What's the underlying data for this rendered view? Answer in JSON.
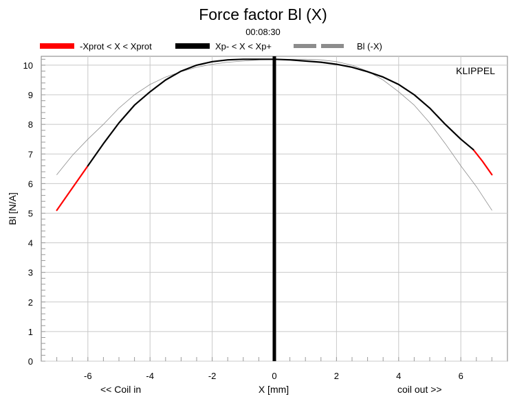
{
  "chart_data": {
    "type": "line",
    "title": "Force factor Bl (X)",
    "subtitle": "00:08:30",
    "xlabel": "X [mm]",
    "ylabel": "Bl [N/A]",
    "xlim": [
      -7.5,
      7.5
    ],
    "ylim": [
      0,
      10.3
    ],
    "x_ticks": [
      -6,
      -4,
      -2,
      0,
      2,
      4,
      6
    ],
    "y_ticks": [
      0,
      1,
      2,
      3,
      4,
      5,
      6,
      7,
      8,
      9,
      10
    ],
    "x_left_label": "<< Coil in",
    "x_right_label": "coil out >>",
    "annotation": "KLIPPEL",
    "grid": true,
    "legend_position": "top",
    "zero_marker_x": 0,
    "series": [
      {
        "name": "-Xprot < X < Xprot",
        "color": "#ff0000",
        "x": [
          -7.0,
          -6.6,
          -6.2,
          -6.0
        ],
        "y": [
          5.1,
          5.7,
          6.3,
          6.6
        ]
      },
      {
        "name": "Xp- < X < Xp+",
        "color": "#000000",
        "x": [
          -6.0,
          -5.5,
          -5.0,
          -4.5,
          -4.0,
          -3.5,
          -3.0,
          -2.5,
          -2.0,
          -1.5,
          -1.0,
          -0.5,
          0.0,
          0.5,
          1.0,
          1.5,
          2.0,
          2.5,
          3.0,
          3.5,
          4.0,
          4.5,
          5.0,
          5.5,
          6.0,
          6.4
        ],
        "y": [
          6.6,
          7.35,
          8.05,
          8.65,
          9.1,
          9.5,
          9.8,
          10.0,
          10.12,
          10.18,
          10.2,
          10.2,
          10.2,
          10.18,
          10.14,
          10.1,
          10.03,
          9.93,
          9.78,
          9.6,
          9.35,
          9.0,
          8.55,
          8.0,
          7.5,
          7.15
        ]
      },
      {
        "name": "",
        "color": "#ff0000",
        "x": [
          6.4,
          6.7,
          7.0
        ],
        "y": [
          7.15,
          6.75,
          6.3
        ]
      },
      {
        "name": "Bl (-X)",
        "color": "#8c8c8c",
        "x": [
          -7.0,
          -6.5,
          -6.0,
          -5.5,
          -5.0,
          -4.5,
          -4.0,
          -3.5,
          -3.0,
          -2.5,
          -2.0,
          -1.5,
          -1.0,
          -0.5,
          0.0,
          0.5,
          1.0,
          1.5,
          2.0,
          2.5,
          3.0,
          3.5,
          4.0,
          4.5,
          5.0,
          5.5,
          6.0,
          6.5,
          7.0
        ],
        "y": [
          6.3,
          6.95,
          7.5,
          8.0,
          8.55,
          9.0,
          9.35,
          9.6,
          9.78,
          9.93,
          10.03,
          10.1,
          10.14,
          10.18,
          10.2,
          10.2,
          10.2,
          10.18,
          10.12,
          10.0,
          9.8,
          9.5,
          9.1,
          8.65,
          8.05,
          7.35,
          6.6,
          5.9,
          5.1
        ]
      }
    ]
  }
}
